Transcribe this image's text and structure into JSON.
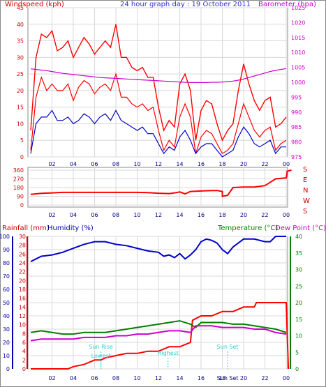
{
  "chart_data": [
    {
      "type": "line",
      "title": "24 hour graph day : 19 October 2011",
      "ylabel": "Windspeed (kph)",
      "y2label": "Barometer (hpa)",
      "ylim": [
        0,
        45
      ],
      "y2lim": [
        975,
        1025
      ],
      "yticks": [
        "0",
        "5",
        "10",
        "15",
        "20",
        "25",
        "30",
        "35",
        "40",
        "45"
      ],
      "y2ticks": [
        "975",
        "980",
        "985",
        "990",
        "995",
        "1000",
        "1005",
        "1010",
        "1015",
        "1020",
        "1025"
      ],
      "xticks": [
        "02",
        "04",
        "06",
        "08",
        "10",
        "12",
        "14",
        "16",
        "18",
        "20",
        "22",
        "00"
      ],
      "x_hours": [
        0,
        0.5,
        1,
        1.5,
        2,
        2.5,
        3,
        3.5,
        4,
        4.5,
        5,
        5.5,
        6,
        6.5,
        7,
        7.5,
        8,
        8.5,
        9,
        9.5,
        10,
        10.5,
        11,
        11.5,
        12,
        12.5,
        13,
        13.5,
        14,
        14.5,
        15,
        15.5,
        16,
        16.5,
        17,
        17.5,
        18,
        18.5,
        19,
        19.5,
        20,
        20.5,
        21,
        21.5,
        22,
        22.5,
        23,
        23.5,
        24
      ],
      "series": [
        {
          "name": "gust",
          "color": "#ff0000",
          "values": [
            8,
            30,
            37,
            36,
            38,
            32,
            33,
            35,
            30,
            33,
            36,
            34,
            31,
            33,
            35,
            33,
            40,
            30,
            30,
            27,
            26,
            27,
            24,
            24,
            15,
            8,
            11,
            9,
            22,
            25,
            20,
            5,
            14,
            17,
            16,
            10,
            5,
            8,
            10,
            20,
            28,
            22,
            17,
            14,
            17,
            18,
            9,
            10,
            12
          ]
        },
        {
          "name": "speed",
          "color": "#ff0000",
          "values": [
            2,
            18,
            24,
            20,
            22,
            20,
            20,
            22,
            17,
            21,
            23,
            22,
            19,
            21,
            22,
            20,
            25,
            18,
            18,
            16,
            15,
            16,
            14,
            15,
            8,
            2,
            5,
            3,
            12,
            16,
            12,
            1,
            6,
            8,
            7,
            4,
            1,
            2,
            4,
            10,
            16,
            12,
            8,
            6,
            8,
            9,
            2,
            4,
            5
          ]
        },
        {
          "name": "average",
          "color": "#0000cc",
          "values": [
            1,
            10,
            12,
            12,
            14,
            11,
            11,
            12,
            10,
            11,
            13,
            12,
            10,
            12,
            13,
            11,
            14,
            11,
            10,
            9,
            8,
            9,
            7,
            7,
            4,
            1,
            3,
            2,
            6,
            8,
            5,
            1,
            3,
            4,
            4,
            2,
            0,
            1,
            2,
            6,
            9,
            7,
            4,
            3,
            4,
            5,
            1,
            3,
            3
          ]
        },
        {
          "name": "barometer",
          "color": "#cc00cc",
          "values": [
            1004.5,
            1004.3,
            1004.1,
            1003.9,
            1003.6,
            1003.3,
            1003.0,
            1002.8,
            1002.6,
            1002.4,
            1002.2,
            1002.0,
            1001.8,
            1001.6,
            1001.5,
            1001.4,
            1001.3,
            1001.2,
            1001.1,
            1001.0,
            1000.9,
            1000.8,
            1000.7,
            1000.6,
            1000.5,
            1000.4,
            1000.3,
            1000.2,
            1000.1,
            1000.0,
            999.9,
            999.9,
            999.9,
            999.9,
            1000.0,
            1000.0,
            1000.1,
            1000.2,
            1000.4,
            1000.7,
            1001.1,
            1001.6,
            1002.1,
            1002.6,
            1003.1,
            1003.6,
            1004.0,
            1004.3,
            1004.6
          ]
        }
      ]
    },
    {
      "type": "line",
      "title": "",
      "ylabel": "",
      "ylim": [
        0,
        360
      ],
      "yticks": [
        "0",
        "90",
        "180",
        "270",
        "360"
      ],
      "compass_labels": [
        "S",
        "E",
        "N",
        "W",
        "S"
      ],
      "xticks": [
        "02",
        "04",
        "06",
        "08",
        "10",
        "12",
        "14",
        "16",
        "18",
        "20",
        "22",
        "00"
      ],
      "series": [
        {
          "name": "direction",
          "color": "#ff0000",
          "points": [
            [
              0,
              110
            ],
            [
              0.5,
              115
            ],
            [
              1,
              120
            ],
            [
              2,
              125
            ],
            [
              3,
              130
            ],
            [
              4,
              130
            ],
            [
              5,
              130
            ],
            [
              6,
              130
            ],
            [
              7,
              130
            ],
            [
              8,
              130
            ],
            [
              9,
              130
            ],
            [
              10,
              130
            ],
            [
              11,
              128
            ],
            [
              12,
              122
            ],
            [
              13,
              118
            ],
            [
              13.5,
              125
            ],
            [
              14,
              135
            ],
            [
              14.5,
              115
            ],
            [
              15,
              140
            ],
            [
              16,
              145
            ],
            [
              17,
              150
            ],
            [
              17.5,
              150
            ],
            [
              18,
              140
            ],
            [
              18,
              90
            ],
            [
              18.5,
              100
            ],
            [
              19,
              180
            ],
            [
              20,
              185
            ],
            [
              21,
              185
            ],
            [
              22,
              200
            ],
            [
              23,
              270
            ],
            [
              24,
              280
            ],
            [
              24.1,
              350
            ],
            [
              24.5,
              360
            ]
          ]
        }
      ]
    },
    {
      "type": "line",
      "title": "",
      "ylabel_left_1": "Rainfall (mm)",
      "ylabel_left_2": "Humidity (%)",
      "ylabel_right_1": "Temperature (°C)",
      "ylabel_right_2": "Dew Point (°C)",
      "rain_ticks": [
        "0",
        "2",
        "4",
        "6",
        "8",
        "10",
        "12",
        "14",
        "16",
        "18",
        "20",
        "22",
        "24",
        "26",
        "28",
        "30"
      ],
      "humidity_ticks": [
        "0",
        "10",
        "20",
        "30",
        "40",
        "50",
        "60",
        "70",
        "80",
        "90",
        "100"
      ],
      "temp_ticks": [
        "0",
        "5",
        "10",
        "15",
        "20",
        "25",
        "30",
        "35",
        "40"
      ],
      "xticks": [
        "02",
        "04",
        "06",
        "08",
        "10",
        "12",
        "14",
        "16",
        "18",
        "20",
        "22",
        "00"
      ],
      "annotations": [
        {
          "label": "Sun Rise",
          "hour": 6.6
        },
        {
          "label": "Lowest",
          "hour": 6.6
        },
        {
          "label": "Highest",
          "hour": 12.9
        },
        {
          "label": "Sun Set",
          "hour": 18.5
        }
      ],
      "sun_set_tick": "Sun Set",
      "series": [
        {
          "name": "Humidity",
          "axis": "humidity",
          "color": "#0000cc",
          "points": [
            [
              0,
              81
            ],
            [
              0.5,
              83
            ],
            [
              1,
              85
            ],
            [
              2,
              86
            ],
            [
              3,
              88
            ],
            [
              4,
              91
            ],
            [
              5,
              94
            ],
            [
              6,
              96
            ],
            [
              7,
              96
            ],
            [
              8,
              94
            ],
            [
              9,
              93
            ],
            [
              10,
              91
            ],
            [
              11,
              89
            ],
            [
              12,
              88
            ],
            [
              12.5,
              85
            ],
            [
              13,
              86
            ],
            [
              13.5,
              84
            ],
            [
              14,
              87
            ],
            [
              14.5,
              83
            ],
            [
              15,
              86
            ],
            [
              15.5,
              90
            ],
            [
              16,
              96
            ],
            [
              16.5,
              98
            ],
            [
              17,
              97
            ],
            [
              17.5,
              95
            ],
            [
              18,
              90
            ],
            [
              18.5,
              87
            ],
            [
              19,
              92
            ],
            [
              20,
              98
            ],
            [
              21,
              98
            ],
            [
              22,
              96
            ],
            [
              22.5,
              96
            ],
            [
              23,
              100
            ],
            [
              24,
              100
            ]
          ]
        },
        {
          "name": "Rainfall",
          "axis": "rain",
          "color": "#ff0000",
          "points": [
            [
              0,
              0
            ],
            [
              3.5,
              0
            ],
            [
              4,
              0.5
            ],
            [
              5,
              1
            ],
            [
              6,
              2
            ],
            [
              6.6,
              2
            ],
            [
              7,
              2.5
            ],
            [
              8,
              3
            ],
            [
              9,
              3.5
            ],
            [
              10,
              3.5
            ],
            [
              11,
              4
            ],
            [
              12,
              4
            ],
            [
              12.5,
              4.5
            ],
            [
              13,
              5
            ],
            [
              14,
              5
            ],
            [
              15,
              6
            ],
            [
              15.2,
              11
            ],
            [
              16,
              12
            ],
            [
              17,
              12
            ],
            [
              18,
              13
            ],
            [
              19,
              13
            ],
            [
              20,
              14
            ],
            [
              21,
              14
            ],
            [
              21.2,
              15
            ],
            [
              24,
              15
            ],
            [
              24.2,
              0
            ]
          ]
        },
        {
          "name": "Temperature",
          "axis": "temp",
          "color": "#008000",
          "points": [
            [
              0,
              11
            ],
            [
              1,
              11.5
            ],
            [
              2,
              11
            ],
            [
              3,
              10.5
            ],
            [
              4,
              10.5
            ],
            [
              5,
              11
            ],
            [
              6,
              11
            ],
            [
              7,
              11
            ],
            [
              8,
              11.5
            ],
            [
              9,
              12
            ],
            [
              10,
              12.5
            ],
            [
              11,
              13
            ],
            [
              12,
              13.5
            ],
            [
              13,
              14
            ],
            [
              14,
              14.5
            ],
            [
              15,
              13.5
            ],
            [
              15.5,
              12.5
            ],
            [
              16,
              14
            ],
            [
              17,
              14
            ],
            [
              18,
              14
            ],
            [
              19,
              13.5
            ],
            [
              20,
              13.5
            ],
            [
              21,
              13
            ],
            [
              22,
              12.5
            ],
            [
              23,
              12
            ],
            [
              24,
              11
            ]
          ]
        },
        {
          "name": "Dew Point",
          "axis": "temp",
          "color": "#cc00cc",
          "points": [
            [
              0,
              8.5
            ],
            [
              1,
              9
            ],
            [
              2,
              9
            ],
            [
              3,
              9
            ],
            [
              4,
              9
            ],
            [
              5,
              9.5
            ],
            [
              6,
              9.5
            ],
            [
              7,
              9.5
            ],
            [
              8,
              10
            ],
            [
              9,
              10
            ],
            [
              10,
              10.5
            ],
            [
              11,
              10.5
            ],
            [
              12,
              11
            ],
            [
              13,
              11.5
            ],
            [
              14,
              11.5
            ],
            [
              15,
              11
            ],
            [
              15.5,
              13
            ],
            [
              16,
              13
            ],
            [
              17,
              13
            ],
            [
              18,
              12.5
            ],
            [
              19,
              12.5
            ],
            [
              20,
              12.5
            ],
            [
              21,
              12
            ],
            [
              22,
              12
            ],
            [
              23,
              11
            ],
            [
              24,
              10.5
            ]
          ]
        }
      ]
    }
  ]
}
